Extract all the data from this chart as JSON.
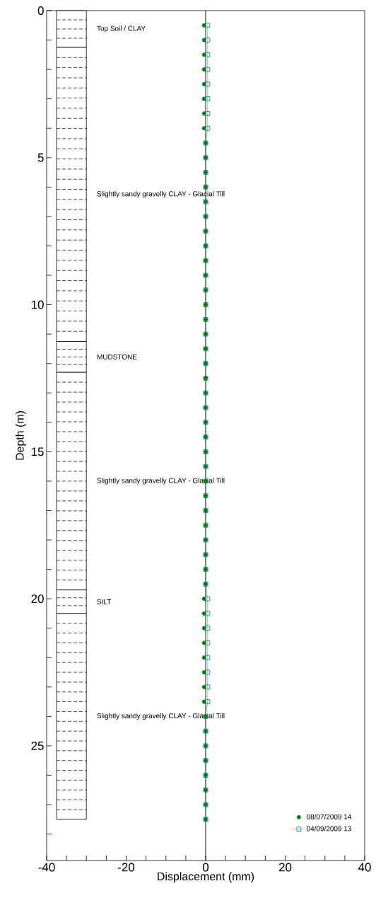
{
  "chart_data": {
    "type": "scatter",
    "xlabel": "Displacement (mm)",
    "ylabel": "Depth (m)",
    "xlim": [
      -40,
      40
    ],
    "ylim": [
      28.9,
      0
    ],
    "xticks": [
      -40,
      {
        "value": -35,
        "label": null
      },
      {
        "value": -30,
        "label": null
      },
      {
        "value": -25,
        "label": null
      },
      -20,
      {
        "value": -15,
        "label": null
      },
      {
        "value": -10,
        "label": null
      },
      {
        "value": -5,
        "label": null
      },
      0,
      {
        "value": 5,
        "label": null
      },
      {
        "value": 10,
        "label": null
      },
      {
        "value": 15,
        "label": null
      },
      20,
      {
        "value": 25,
        "label": null
      },
      {
        "value": 30,
        "label": null
      },
      {
        "value": 35,
        "label": null
      },
      40
    ],
    "yticks": [
      0,
      {
        "value": 1,
        "label": null
      },
      {
        "value": 2,
        "label": null
      },
      {
        "value": 3,
        "label": null
      },
      {
        "value": 4,
        "label": null
      },
      5,
      {
        "value": 6,
        "label": null
      },
      {
        "value": 7,
        "label": null
      },
      {
        "value": 8,
        "label": null
      },
      {
        "value": 9,
        "label": null
      },
      10,
      {
        "value": 11,
        "label": null
      },
      {
        "value": 12,
        "label": null
      },
      {
        "value": 13,
        "label": null
      },
      {
        "value": 14,
        "label": null
      },
      15,
      {
        "value": 16,
        "label": null
      },
      {
        "value": 17,
        "label": null
      },
      {
        "value": 18,
        "label": null
      },
      {
        "value": 19,
        "label": null
      },
      20,
      {
        "value": 21,
        "label": null
      },
      {
        "value": 22,
        "label": null
      },
      {
        "value": 23,
        "label": null
      },
      {
        "value": 24,
        "label": null
      },
      25,
      {
        "value": 26,
        "label": null
      },
      {
        "value": 27,
        "label": null
      },
      {
        "value": 28,
        "label": null
      }
    ],
    "legend": "bottom right",
    "grid": false,
    "ref_lines": [
      {
        "axis": "x",
        "value": 0,
        "color": "#000000"
      }
    ],
    "bands": [
      {
        "axis": "y",
        "from": 0,
        "to": 1.25,
        "label": "Top Soil / CLAY",
        "color": "#ffffff"
      },
      {
        "axis": "y",
        "from": 1.25,
        "to": 11.25,
        "label": "Slightly sandy gravelly CLAY - Glacial Till",
        "color": "#ffffff"
      },
      {
        "axis": "y",
        "from": 11.25,
        "to": 12.3,
        "label": "MUDSTONE",
        "color": "#ffffff"
      },
      {
        "axis": "y",
        "from": 12.3,
        "to": 19.7,
        "label": "Slightly sandy gravelly CLAY - Glacial Till",
        "color": "#ffffff"
      },
      {
        "axis": "y",
        "from": 19.7,
        "to": 20.5,
        "label": "SILT",
        "color": "#ffffff"
      },
      {
        "axis": "y",
        "from": 20.5,
        "to": 27.5,
        "label": "Slightly sandy gravelly CLAY - Glacial Till",
        "color": "#ffffff"
      }
    ],
    "series": [
      {
        "name": "08/07/2009 14",
        "marker": "circle",
        "color": "#0b7a0b",
        "x": [
          -0.4,
          -0.4,
          -0.4,
          -0.4,
          -0.4,
          -0.4,
          -0.4,
          -0.4,
          0,
          0,
          0,
          0,
          0,
          0,
          0,
          0,
          0,
          0,
          0,
          0,
          0,
          0,
          0,
          0,
          0,
          0,
          0,
          0,
          0,
          0,
          0,
          0,
          0,
          0,
          0,
          0,
          0,
          0,
          0,
          -0.4,
          -0.4,
          -0.4,
          -0.4,
          -0.4,
          -0.4,
          -0.4,
          -0.4,
          0,
          0,
          0,
          0,
          0,
          0,
          0,
          0
        ],
        "values": [
          0.5,
          1,
          1.5,
          2,
          2.5,
          3,
          3.5,
          4,
          4.5,
          5,
          5.5,
          6,
          6.5,
          7,
          7.5,
          8,
          8.5,
          9,
          9.5,
          10,
          10.5,
          11,
          11.5,
          12,
          12.5,
          13,
          13.5,
          14,
          14.5,
          15,
          15.5,
          16,
          16.5,
          17,
          17.5,
          18,
          18.5,
          19,
          19.5,
          20,
          20.5,
          21,
          21.5,
          22,
          22.5,
          23,
          23.5,
          24,
          24.5,
          25,
          25.5,
          26,
          26.5,
          27,
          27.5
        ]
      },
      {
        "name": "04/09/2009 13",
        "type": "line",
        "marker": "square",
        "color": "#1a8a80",
        "x": [
          0.5,
          0.5,
          0.5,
          0.5,
          0.5,
          0.5,
          0.5,
          0.5,
          0,
          0,
          0,
          0,
          0,
          0,
          0,
          0,
          0,
          0,
          0,
          0,
          0,
          0,
          0,
          0,
          0,
          0,
          0,
          0,
          0,
          0,
          0,
          0,
          0,
          0,
          0,
          0,
          0,
          0,
          0,
          0.5,
          0.5,
          0.5,
          0.5,
          0.5,
          0.5,
          0.5,
          0.5,
          0,
          0,
          0,
          0,
          0,
          0,
          0,
          0
        ],
        "values": [
          0.5,
          1,
          1.5,
          2,
          2.5,
          3,
          3.5,
          4,
          4.5,
          5,
          5.5,
          6,
          6.5,
          7,
          7.5,
          8,
          8.5,
          9,
          9.5,
          10,
          10.5,
          11,
          11.5,
          12,
          12.5,
          13,
          13.5,
          14,
          14.5,
          15,
          15.5,
          16,
          16.5,
          17,
          17.5,
          18,
          18.5,
          19,
          19.5,
          20,
          20.5,
          21,
          21.5,
          22,
          22.5,
          23,
          23.5,
          24,
          24.5,
          25,
          25.5,
          26,
          26.5,
          27,
          27.5
        ]
      }
    ]
  }
}
